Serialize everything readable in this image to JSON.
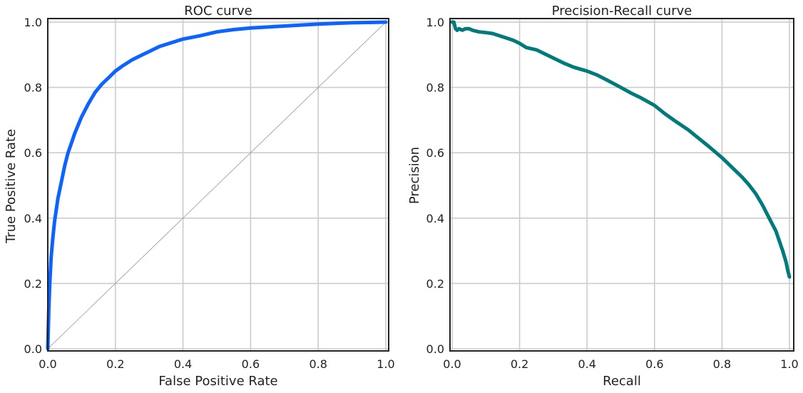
{
  "chart_data": [
    {
      "type": "line",
      "title": "ROC curve",
      "xlabel": "False Positive Rate",
      "ylabel": "True Positive Rate",
      "xlim": [
        0,
        1
      ],
      "ylim": [
        0,
        1
      ],
      "xticks": [
        "0.0",
        "0.2",
        "0.4",
        "0.6",
        "0.8",
        "1.0"
      ],
      "yticks": [
        "0.0",
        "0.2",
        "0.4",
        "0.6",
        "0.8",
        "1.0"
      ],
      "grid": true,
      "reference_line": {
        "x": [
          0,
          1
        ],
        "y": [
          0,
          1
        ],
        "color": "#888888"
      },
      "series": [
        {
          "color": "#0d63ff",
          "x": [
            0.0,
            0.003,
            0.006,
            0.01,
            0.015,
            0.02,
            0.03,
            0.04,
            0.05,
            0.06,
            0.07,
            0.08,
            0.1,
            0.12,
            0.14,
            0.16,
            0.18,
            0.2,
            0.22,
            0.25,
            0.28,
            0.3,
            0.33,
            0.36,
            0.4,
            0.45,
            0.5,
            0.55,
            0.6,
            0.65,
            0.7,
            0.75,
            0.8,
            0.85,
            0.9,
            0.95,
            1.0
          ],
          "y": [
            0.0,
            0.12,
            0.2,
            0.28,
            0.34,
            0.39,
            0.46,
            0.51,
            0.56,
            0.6,
            0.63,
            0.66,
            0.71,
            0.75,
            0.785,
            0.81,
            0.83,
            0.85,
            0.865,
            0.885,
            0.9,
            0.91,
            0.925,
            0.935,
            0.948,
            0.958,
            0.97,
            0.977,
            0.982,
            0.985,
            0.988,
            0.991,
            0.994,
            0.996,
            0.998,
            0.999,
            1.0
          ]
        }
      ]
    },
    {
      "type": "line",
      "title": "Precision-Recall curve",
      "xlabel": "Recall",
      "ylabel": "Precision",
      "xlim": [
        0,
        1
      ],
      "ylim": [
        0,
        1
      ],
      "xticks": [
        "0.0",
        "0.2",
        "0.4",
        "0.6",
        "0.8",
        "1.0"
      ],
      "yticks": [
        "0.0",
        "0.2",
        "0.4",
        "0.6",
        "0.8",
        "1.0"
      ],
      "grid": true,
      "series": [
        {
          "color": "#007a7a",
          "x": [
            0.0,
            0.005,
            0.01,
            0.015,
            0.02,
            0.03,
            0.04,
            0.05,
            0.06,
            0.08,
            0.1,
            0.12,
            0.15,
            0.18,
            0.2,
            0.22,
            0.25,
            0.28,
            0.3,
            0.33,
            0.36,
            0.4,
            0.43,
            0.46,
            0.5,
            0.53,
            0.56,
            0.6,
            0.63,
            0.66,
            0.7,
            0.73,
            0.76,
            0.8,
            0.83,
            0.86,
            0.88,
            0.9,
            0.92,
            0.94,
            0.96,
            0.97,
            0.98,
            0.99,
            0.995,
            1.0
          ],
          "y": [
            1.0,
            1.0,
            0.98,
            0.975,
            0.98,
            0.975,
            0.98,
            0.98,
            0.975,
            0.97,
            0.968,
            0.965,
            0.955,
            0.945,
            0.935,
            0.922,
            0.915,
            0.9,
            0.89,
            0.875,
            0.862,
            0.85,
            0.838,
            0.822,
            0.8,
            0.783,
            0.768,
            0.745,
            0.72,
            0.698,
            0.67,
            0.645,
            0.62,
            0.585,
            0.555,
            0.525,
            0.502,
            0.475,
            0.44,
            0.4,
            0.36,
            0.33,
            0.3,
            0.265,
            0.24,
            0.22
          ]
        }
      ]
    }
  ]
}
